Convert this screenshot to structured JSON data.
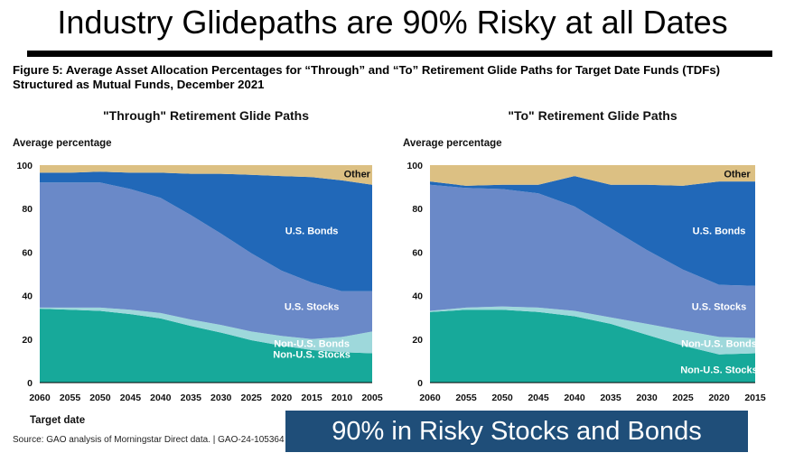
{
  "slide": {
    "title": "Industry Glidepaths are 90% Risky at all Dates",
    "callout": "90% in Risky Stocks and Bonds"
  },
  "figure": {
    "title_line1": "Figure 5: Average Asset Allocation Percentages for “Through” and “To” Retirement Glide Paths for Target Date Funds (TDFs)",
    "title_line2": "Structured as Mutual Funds, December 2021",
    "xlabel": "Target date",
    "source": "Source: GAO analysis of Morningstar Direct data.  |  GAO-24-105364"
  },
  "colors": {
    "non_us_stocks": "#17a99a",
    "non_us_bonds": "#9ed8db",
    "us_stocks": "#6a89c8",
    "us_bonds": "#2168b8",
    "other": "#dcc083",
    "callout_bg": "#1f4e79"
  },
  "chart_data": [
    {
      "type": "area",
      "stacked": true,
      "title": "\"Through\" Retirement Glide Paths",
      "ylabel": "Average percentage",
      "xlabel": "Target date",
      "ylim": [
        0,
        100
      ],
      "yticks": [
        0,
        20,
        40,
        60,
        80,
        100
      ],
      "categories": [
        "2060",
        "2055",
        "2050",
        "2045",
        "2040",
        "2035",
        "2030",
        "2025",
        "2020",
        "2015",
        "2010",
        "2005"
      ],
      "series": [
        {
          "name": "Non-U.S. Stocks",
          "key": "non_us_stocks",
          "label_at": [
            9,
            13
          ],
          "values": [
            34,
            33.5,
            33,
            31.5,
            29.5,
            26,
            23,
            19.5,
            17,
            15,
            14,
            13.5
          ]
        },
        {
          "name": "Non-U.S. Bonds",
          "key": "non_us_bonds",
          "label_at": [
            9,
            18
          ],
          "values": [
            0.5,
            1,
            1.5,
            2,
            2.5,
            3,
            3.5,
            4,
            4.5,
            5,
            7,
            10
          ]
        },
        {
          "name": "U.S. Stocks",
          "key": "us_stocks",
          "label_at": [
            9,
            35
          ],
          "values": [
            57.5,
            57.5,
            57.5,
            55.5,
            53,
            48,
            42,
            36,
            30,
            26,
            21,
            18.5
          ]
        },
        {
          "name": "U.S. Bonds",
          "key": "us_bonds",
          "label_at": [
            9,
            70
          ],
          "values": [
            4.5,
            4.5,
            5,
            7.5,
            11.5,
            19,
            27.5,
            36,
            43.5,
            48.5,
            51,
            49
          ]
        },
        {
          "name": "Other",
          "key": "other",
          "label_at": [
            10.5,
            96
          ],
          "values": [
            3.5,
            3.5,
            3,
            3.5,
            3.5,
            4,
            4,
            4.5,
            5,
            5.5,
            7,
            9
          ]
        }
      ]
    },
    {
      "type": "area",
      "stacked": true,
      "title": "\"To\" Retirement Glide Paths",
      "ylabel": "Average percentage",
      "xlabel": "Target date",
      "ylim": [
        0,
        100
      ],
      "yticks": [
        0,
        20,
        40,
        60,
        80,
        100
      ],
      "categories": [
        "2060",
        "2055",
        "2050",
        "2045",
        "2040",
        "2035",
        "2030",
        "2025",
        "2020",
        "2015"
      ],
      "series": [
        {
          "name": "Non-U.S. Stocks",
          "key": "non_us_stocks",
          "label_at": [
            8,
            6
          ],
          "values": [
            32.5,
            33.5,
            33.5,
            32.5,
            30.5,
            27,
            22,
            17,
            13,
            13.5
          ]
        },
        {
          "name": "Non-U.S. Bonds",
          "key": "non_us_bonds",
          "label_at": [
            8,
            18
          ],
          "values": [
            0.5,
            1,
            1.5,
            2,
            2.5,
            3,
            5,
            7,
            8,
            7
          ]
        },
        {
          "name": "U.S. Stocks",
          "key": "us_stocks",
          "label_at": [
            8,
            35
          ],
          "values": [
            58,
            55,
            54,
            52.5,
            48,
            41,
            34,
            28,
            24,
            24
          ]
        },
        {
          "name": "U.S. Bonds",
          "key": "us_bonds",
          "label_at": [
            8,
            70
          ],
          "values": [
            1.5,
            1,
            2,
            4,
            14,
            20,
            30,
            38.5,
            47.5,
            48
          ]
        },
        {
          "name": "Other",
          "key": "other",
          "label_at": [
            8.5,
            96
          ],
          "values": [
            7.5,
            9.5,
            9,
            9,
            5,
            9,
            9,
            9.5,
            7.5,
            7.5
          ]
        }
      ]
    }
  ]
}
